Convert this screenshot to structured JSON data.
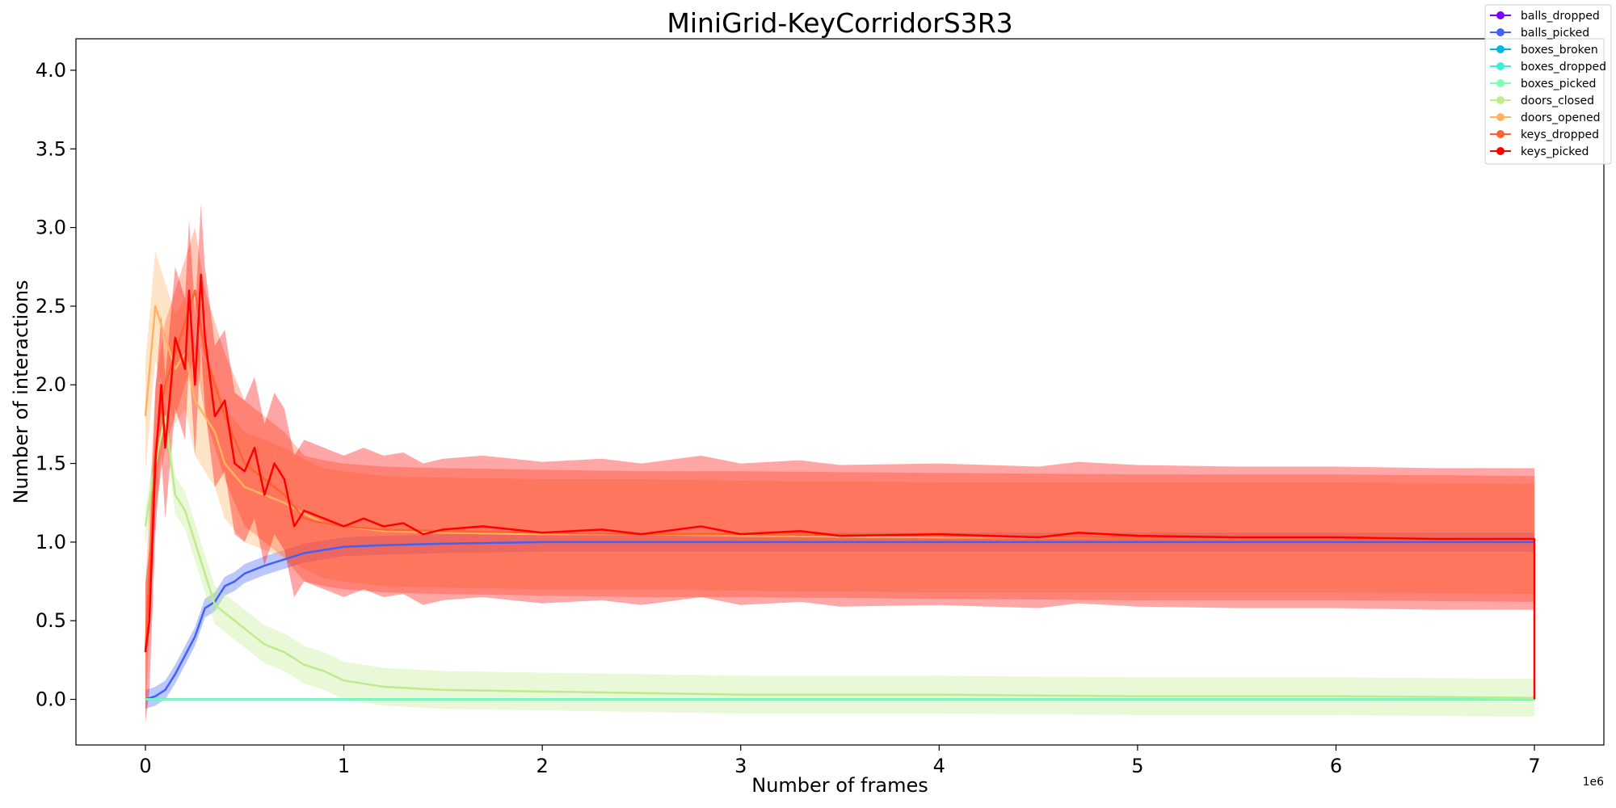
{
  "chart_data": {
    "type": "line",
    "title": "MiniGrid-KeyCorridorS3R3",
    "xlabel": "Number of frames",
    "ylabel": "Number of interactions",
    "x_offset_label": "1e6",
    "xlim": [
      -0.35,
      7.35
    ],
    "ylim": [
      -0.29,
      4.2
    ],
    "x_ticks": [
      0,
      1,
      2,
      3,
      4,
      5,
      6,
      7
    ],
    "x_tick_labels": [
      "0",
      "1",
      "2",
      "3",
      "4",
      "5",
      "6",
      "7"
    ],
    "y_ticks": [
      0.0,
      0.5,
      1.0,
      1.5,
      2.0,
      2.5,
      3.0,
      3.5,
      4.0
    ],
    "y_tick_labels": [
      "0.0",
      "0.5",
      "1.0",
      "1.5",
      "2.0",
      "2.5",
      "3.0",
      "3.5",
      "4.0"
    ],
    "grid": false,
    "legend_position": "upper-right",
    "series": [
      {
        "name": "balls_dropped",
        "color": "#8000ff",
        "x": [
          0,
          1,
          2,
          3,
          4,
          5,
          6,
          7
        ],
        "y": [
          0,
          0,
          0,
          0,
          0,
          0,
          0,
          0
        ],
        "band": 0
      },
      {
        "name": "balls_picked",
        "color": "#4062fa",
        "x": [
          0,
          0.05,
          0.1,
          0.15,
          0.2,
          0.25,
          0.3,
          0.35,
          0.4,
          0.45,
          0.5,
          0.6,
          0.7,
          0.8,
          0.9,
          1.0,
          1.2,
          1.5,
          2.0,
          2.5,
          3.0,
          4.0,
          5.0,
          6.0,
          7.0
        ],
        "y": [
          0,
          0.02,
          0.06,
          0.16,
          0.28,
          0.4,
          0.58,
          0.62,
          0.72,
          0.75,
          0.8,
          0.85,
          0.89,
          0.93,
          0.95,
          0.97,
          0.98,
          0.99,
          1.0,
          1.0,
          1.0,
          1.0,
          1.0,
          1.0,
          1.0
        ],
        "band": 0.06
      },
      {
        "name": "boxes_broken",
        "color": "#00b5eb",
        "x": [
          0,
          1,
          2,
          3,
          4,
          5,
          6,
          7
        ],
        "y": [
          0,
          0,
          0,
          0,
          0,
          0,
          0,
          0
        ],
        "band": 0
      },
      {
        "name": "boxes_dropped",
        "color": "#40ecd4",
        "x": [
          0,
          1,
          2,
          3,
          4,
          5,
          6,
          7
        ],
        "y": [
          0,
          0,
          0,
          0,
          0,
          0,
          0,
          0
        ],
        "band": 0
      },
      {
        "name": "boxes_picked",
        "color": "#80ffb4",
        "x": [
          0,
          1,
          2,
          3,
          4,
          5,
          6,
          7
        ],
        "y": [
          0,
          0,
          0,
          0,
          0,
          0,
          0,
          0
        ],
        "band": 0
      },
      {
        "name": "doors_closed",
        "color": "#c0eb8d",
        "x": [
          0,
          0.05,
          0.1,
          0.15,
          0.2,
          0.25,
          0.3,
          0.35,
          0.4,
          0.5,
          0.6,
          0.7,
          0.8,
          0.9,
          1.0,
          1.2,
          1.5,
          2.0,
          2.5,
          3.0,
          4.0,
          5.0,
          6.0,
          7.0
        ],
        "y": [
          1.1,
          1.5,
          1.8,
          1.3,
          1.2,
          1.0,
          0.8,
          0.6,
          0.55,
          0.45,
          0.35,
          0.3,
          0.22,
          0.18,
          0.12,
          0.08,
          0.06,
          0.05,
          0.04,
          0.03,
          0.03,
          0.02,
          0.02,
          0.01
        ],
        "band": 0.12
      },
      {
        "name": "doors_opened",
        "color": "#ffb360",
        "x": [
          0,
          0.05,
          0.1,
          0.15,
          0.2,
          0.25,
          0.3,
          0.35,
          0.4,
          0.5,
          0.6,
          0.7,
          0.8,
          0.9,
          1.0,
          1.2,
          1.5,
          2.0,
          2.5,
          3.0,
          4.0,
          5.0,
          6.0,
          7.0
        ],
        "y": [
          1.8,
          2.5,
          2.3,
          2.1,
          2.2,
          1.9,
          1.8,
          1.7,
          1.5,
          1.35,
          1.3,
          1.25,
          1.18,
          1.12,
          1.1,
          1.07,
          1.06,
          1.05,
          1.05,
          1.04,
          1.03,
          1.03,
          1.03,
          1.02
        ],
        "band": 0.35
      },
      {
        "name": "keys_dropped",
        "color": "#ff6230",
        "x": [
          0,
          0.05,
          0.1,
          0.15,
          0.2,
          0.25,
          0.3,
          0.35,
          0.4,
          0.5,
          0.6,
          0.7,
          0.8,
          0.9,
          1.0,
          1.2,
          1.5,
          2.0,
          2.5,
          3.0,
          4.0,
          5.0,
          6.0,
          7.0
        ],
        "y": [
          0.3,
          1.6,
          2.0,
          2.2,
          2.4,
          2.6,
          2.2,
          2.0,
          1.8,
          1.5,
          1.4,
          1.3,
          1.15,
          1.12,
          1.1,
          1.08,
          1.07,
          1.06,
          1.05,
          1.05,
          1.04,
          1.03,
          1.03,
          1.02
        ],
        "band": 0.4
      },
      {
        "name": "keys_picked",
        "color": "#ff0000",
        "x": [
          0,
          0.02,
          0.05,
          0.08,
          0.1,
          0.15,
          0.2,
          0.22,
          0.25,
          0.28,
          0.3,
          0.35,
          0.4,
          0.45,
          0.5,
          0.55,
          0.6,
          0.65,
          0.7,
          0.75,
          0.8,
          0.9,
          1.0,
          1.1,
          1.2,
          1.3,
          1.4,
          1.5,
          1.7,
          2.0,
          2.3,
          2.5,
          2.8,
          3.0,
          3.3,
          3.5,
          4.0,
          4.5,
          4.7,
          5.0,
          5.5,
          6.0,
          6.5,
          7.0,
          7.0
        ],
        "y": [
          0.3,
          0.5,
          1.5,
          2.0,
          1.6,
          2.3,
          2.1,
          2.6,
          2.0,
          2.7,
          2.3,
          1.8,
          1.9,
          1.5,
          1.45,
          1.6,
          1.3,
          1.5,
          1.4,
          1.1,
          1.2,
          1.15,
          1.1,
          1.15,
          1.1,
          1.12,
          1.05,
          1.08,
          1.1,
          1.06,
          1.08,
          1.05,
          1.1,
          1.05,
          1.07,
          1.04,
          1.05,
          1.03,
          1.06,
          1.04,
          1.03,
          1.03,
          1.02,
          1.02,
          0.0
        ],
        "band": 0.45
      }
    ]
  }
}
